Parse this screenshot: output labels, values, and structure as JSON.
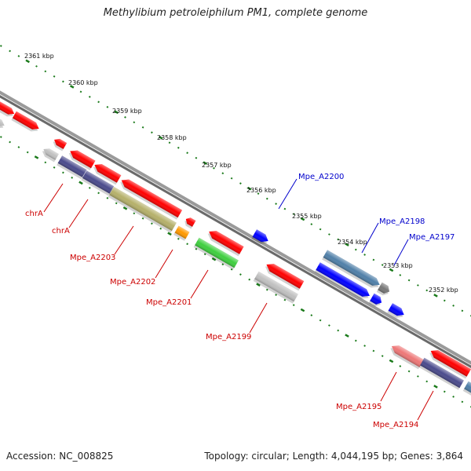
{
  "title": "Methylibium petroleiphilum PM1, complete genome",
  "footer": {
    "accession": "Accession: NC_008825",
    "summary": "Topology: circular; Length: 4,044,195 bp; Genes: 3,864"
  },
  "colors": {
    "backbone": "#7a7a7a",
    "tick": "#1a7a1a",
    "forward_label": "#0000cc",
    "reverse_label": "#cc0000",
    "red": "#ff0000",
    "blue": "#0000ff",
    "steel": "#4f7fa8",
    "navy": "#4a4a8c",
    "olive": "#b5b06a",
    "green": "#3ecf3e",
    "orange": "#ff9900",
    "pink": "#ee7777",
    "gray": "#c0c0c0",
    "darkgray": "#777777"
  },
  "scale_labels": [
    "2361 kbp",
    "2360 kbp",
    "2359 kbp",
    "2358 kbp",
    "2357 kbp",
    "2356 kbp",
    "2355 kbp",
    "2354 kbp",
    "2353 kbp",
    "2352 kbp"
  ],
  "forward_gene_labels": [
    "Mpe_A2200",
    "Mpe_A2198",
    "Mpe_A2197"
  ],
  "reverse_gene_labels": [
    "chrA",
    "chrA",
    "Mpe_A2203",
    "Mpe_A2202",
    "Mpe_A2201",
    "Mpe_A2199",
    "Mpe_A2195",
    "Mpe_A2194"
  ],
  "features": {
    "forward_outer": [
      "red",
      "gray",
      "red"
    ],
    "forward_inner": [
      "blue",
      "steel",
      "darkgray",
      "blue",
      "blue",
      "blue"
    ],
    "reverse_inner": [
      "red",
      "gray",
      "red",
      "red",
      "red",
      "red",
      "red",
      "red",
      "pink",
      "red"
    ],
    "reverse_outer": [
      "navy",
      "navy",
      "olive",
      "orange",
      "green",
      "gray",
      "navy",
      "steel"
    ]
  }
}
